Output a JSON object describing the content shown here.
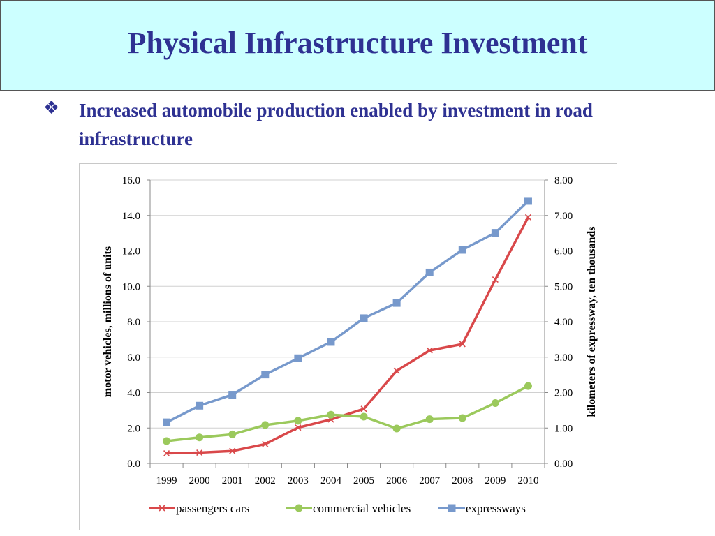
{
  "slide": {
    "title": "Physical Infrastructure Investment",
    "bullet_icon": "four-diamond-bullet-icon",
    "bullet_symbol": "❖",
    "bullet_text": "Increased automobile production enabled by investment in road infrastructure",
    "title_color": "#2e3192",
    "title_bg": "#ccffff"
  },
  "chart_data": {
    "type": "line",
    "categories": [
      "1999",
      "2000",
      "2001",
      "2002",
      "2003",
      "2004",
      "2005",
      "2006",
      "2007",
      "2008",
      "2009",
      "2010"
    ],
    "ylabel": "motor vehicles, millions of units",
    "y2label": "kilometers of expressway, ten thousands",
    "ylim": [
      0,
      16
    ],
    "y2lim": [
      0,
      8
    ],
    "y_ticks": [
      "0.0",
      "2.0",
      "4.0",
      "6.0",
      "8.0",
      "10.0",
      "12.0",
      "14.0",
      "16.0"
    ],
    "y2_ticks": [
      "0.00",
      "1.00",
      "2.00",
      "3.00",
      "4.00",
      "5.00",
      "6.00",
      "7.00",
      "8.00"
    ],
    "grid": true,
    "legend_position": "bottom",
    "series": [
      {
        "name": "passengers cars",
        "axis": "left",
        "color": "#d9484a",
        "marker": "x",
        "values": [
          0.57,
          0.61,
          0.7,
          1.09,
          2.02,
          2.48,
          3.08,
          5.23,
          6.38,
          6.74,
          10.38,
          13.9
        ]
      },
      {
        "name": "commercial vehicles",
        "axis": "left",
        "color": "#9bc95c",
        "marker": "circle",
        "values": [
          1.26,
          1.47,
          1.64,
          2.17,
          2.41,
          2.75,
          2.64,
          1.97,
          2.5,
          2.56,
          3.41,
          4.37
        ]
      },
      {
        "name": "expressways",
        "axis": "right",
        "color": "#7799cc",
        "marker": "square",
        "values": [
          1.16,
          1.63,
          1.94,
          2.51,
          2.97,
          3.43,
          4.1,
          4.53,
          5.39,
          6.03,
          6.51,
          7.41
        ]
      }
    ]
  }
}
